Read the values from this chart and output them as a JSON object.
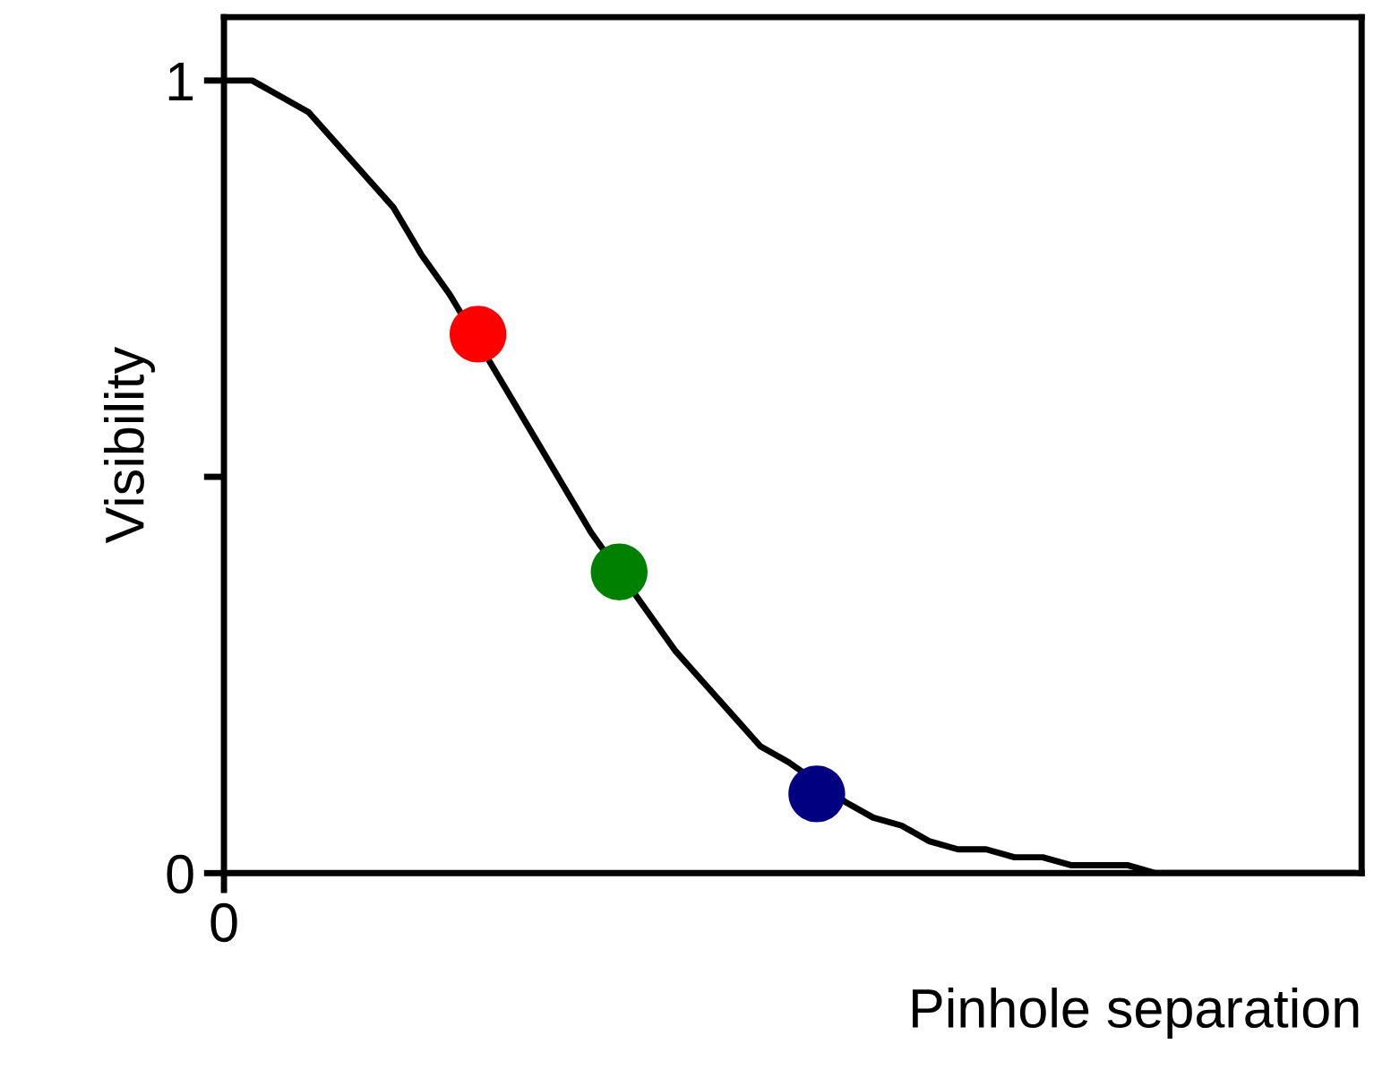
{
  "chart_data": {
    "type": "line",
    "xlabel": "Pinhole separation",
    "ylabel": "Visibility",
    "categories": [
      "0",
      null,
      null,
      null,
      null,
      null,
      null,
      null,
      null,
      null,
      null,
      null,
      null,
      null,
      null,
      null,
      null,
      null,
      null,
      null,
      null,
      null,
      null,
      null,
      null,
      null,
      null,
      null,
      null,
      null,
      null,
      null,
      null,
      null,
      null,
      null,
      null,
      null,
      null,
      null,
      null
    ],
    "ylim": [
      0,
      1.08
    ],
    "yticks": [
      0,
      {
        "value": 0.5,
        "label": null
      },
      1
    ],
    "grid": false,
    "series": [
      {
        "color": "#000000",
        "marker": "none",
        "line_style": "solid",
        "values": [
          1,
          1,
          0.98,
          0.96,
          0.92,
          0.88,
          0.84,
          0.78,
          0.73,
          null,
          0.61,
          0.55,
          0.49,
          0.43,
          null,
          0.33,
          0.28,
          0.24,
          0.2,
          0.16,
          0.14,
          null,
          0.09,
          0.07,
          0.06,
          0.04,
          0.03,
          0.03,
          0.02,
          0.02,
          0.01,
          0.01,
          0.01,
          0,
          0,
          0,
          0,
          0,
          0,
          0,
          0
        ]
      },
      {
        "type": "scatter",
        "marker": "circle",
        "values": [
          null,
          null,
          null,
          null,
          null,
          null,
          null,
          null,
          null,
          0.68,
          null,
          null,
          null,
          null,
          0.38,
          null,
          null,
          null,
          null,
          null,
          null,
          0.1,
          null,
          null,
          null,
          null,
          null,
          null,
          null,
          null,
          null,
          null,
          null,
          null,
          null,
          null,
          null,
          null,
          null,
          null,
          null
        ],
        "colors": [
          null,
          null,
          null,
          null,
          null,
          null,
          null,
          null,
          null,
          "#ff0000",
          null,
          null,
          null,
          null,
          "#008000",
          null,
          null,
          null,
          null,
          null,
          null,
          "#000080",
          null,
          null,
          null,
          null,
          null,
          null,
          null,
          null,
          null,
          null,
          null,
          null,
          null,
          null,
          null,
          null,
          null,
          null,
          null
        ]
      }
    ]
  }
}
